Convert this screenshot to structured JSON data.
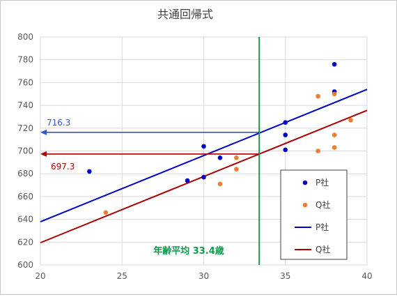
{
  "chart_data": {
    "type": "scatter",
    "title": "共通回帰式",
    "xlabel": "",
    "ylabel": "",
    "xlim": [
      20,
      40
    ],
    "ylim": [
      600,
      800
    ],
    "x_ticks": [
      20,
      25,
      30,
      35,
      40
    ],
    "y_ticks": [
      600,
      620,
      640,
      660,
      680,
      700,
      720,
      740,
      760,
      780,
      800
    ],
    "grid": true,
    "legend_position": "bottom-right",
    "series": [
      {
        "name": "P社",
        "kind": "points",
        "color": "#0000cc",
        "points": [
          [
            23,
            682
          ],
          [
            29,
            674
          ],
          [
            30,
            677
          ],
          [
            30,
            704
          ],
          [
            31,
            694
          ],
          [
            35,
            701
          ],
          [
            35,
            714
          ],
          [
            35,
            725
          ],
          [
            38,
            752
          ],
          [
            38,
            776
          ]
        ]
      },
      {
        "name": "Q社",
        "kind": "points",
        "color": "#ed7d31",
        "points": [
          [
            24,
            646
          ],
          [
            31,
            671
          ],
          [
            32,
            684
          ],
          [
            32,
            694
          ],
          [
            37,
            700
          ],
          [
            37,
            748
          ],
          [
            38,
            703
          ],
          [
            38,
            714
          ],
          [
            38,
            750
          ],
          [
            39,
            727
          ]
        ]
      },
      {
        "name": "P社",
        "kind": "line",
        "color": "#0000cc",
        "x": [
          20,
          40
        ],
        "y": [
          637.9,
          754.0
        ]
      },
      {
        "name": "Q社",
        "kind": "line",
        "color": "#aa0000",
        "x": [
          20,
          40
        ],
        "y": [
          619.5,
          735.6
        ]
      }
    ],
    "annotations": {
      "mean_age": {
        "x": 33.4,
        "label": "年齢平均 33.4歳",
        "color": "#0f9a4a"
      },
      "arrows": [
        {
          "y": 716.3,
          "label": "716.3",
          "color": "#2e57c9"
        },
        {
          "y": 697.3,
          "label": "697.3",
          "color": "#aa0000"
        }
      ]
    }
  }
}
